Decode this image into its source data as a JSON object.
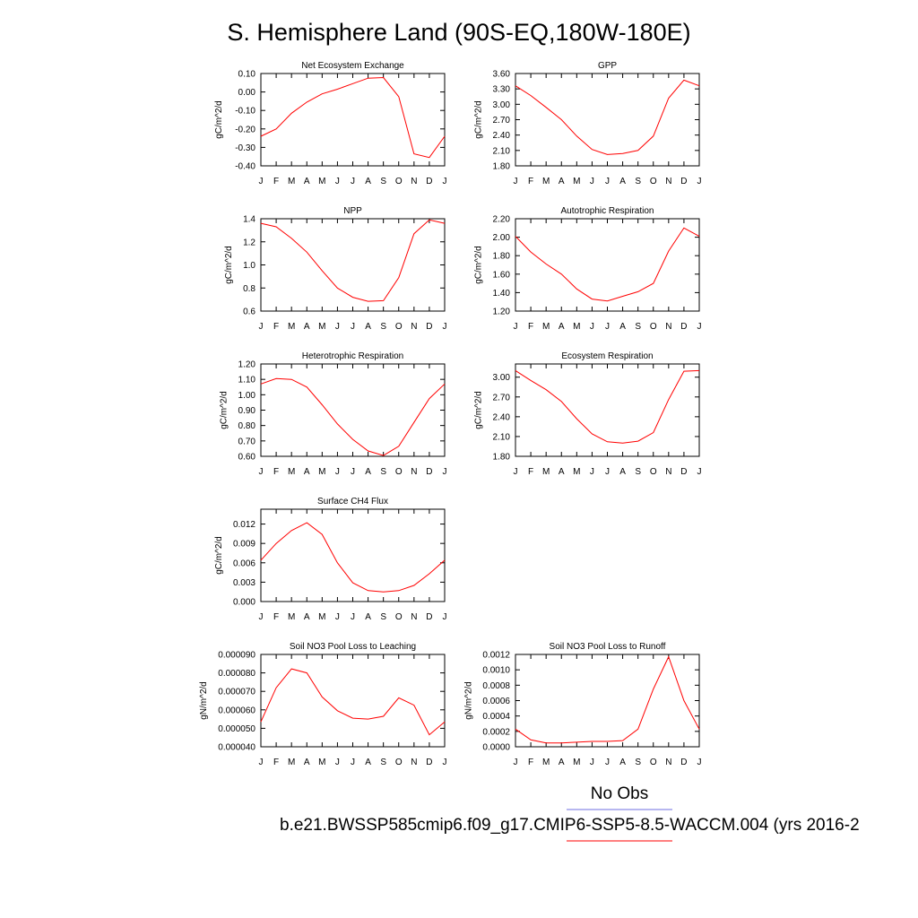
{
  "figure": {
    "title": "S. Hemisphere Land (90S-EQ,180W-180E)",
    "legend": {
      "obs_label": "No Obs",
      "obs_color": "#6f6fe0",
      "model_label": "b.e21.BWSSP585cmip6.f09_g17.CMIP6-SSP5-8.5-WACCM.004 (yrs 2016-2",
      "model_color": "#ff0000"
    }
  },
  "chart_data": [
    {
      "type": "line",
      "title": "Net Ecosystem Exchange",
      "ylabel": "gC/m^2/d",
      "xlabel": "",
      "x": [
        "J",
        "F",
        "M",
        "A",
        "M",
        "J",
        "J",
        "A",
        "S",
        "O",
        "N",
        "D",
        "J"
      ],
      "ylim": [
        -0.4,
        0.1
      ],
      "yticks": [
        0.1,
        0.0,
        -0.1,
        -0.2,
        -0.3,
        -0.4
      ],
      "ytick_labels": [
        "0.10",
        "0.00",
        "-0.10",
        "-0.20",
        "-0.30",
        "-0.40"
      ],
      "series": [
        {
          "name": "model",
          "color": "#ff0000",
          "values": [
            -0.24,
            -0.2,
            -0.115,
            -0.055,
            -0.01,
            0.015,
            0.045,
            0.075,
            0.078,
            -0.025,
            -0.335,
            -0.355,
            -0.24
          ]
        }
      ]
    },
    {
      "type": "line",
      "title": "GPP",
      "ylabel": "gC/m^2/d",
      "xlabel": "",
      "x": [
        "J",
        "F",
        "M",
        "A",
        "M",
        "J",
        "J",
        "A",
        "S",
        "O",
        "N",
        "D",
        "J"
      ],
      "ylim": [
        1.8,
        3.6
      ],
      "yticks": [
        3.6,
        3.3,
        3.0,
        2.7,
        2.4,
        2.1,
        1.8
      ],
      "ytick_labels": [
        "3.60",
        "3.30",
        "3.00",
        "2.70",
        "2.40",
        "2.10",
        "1.80"
      ],
      "series": [
        {
          "name": "model",
          "color": "#ff0000",
          "values": [
            3.36,
            3.17,
            2.94,
            2.7,
            2.38,
            2.12,
            2.02,
            2.04,
            2.1,
            2.38,
            3.12,
            3.47,
            3.36
          ]
        }
      ]
    },
    {
      "type": "line",
      "title": "NPP",
      "ylabel": "gC/m^2/d",
      "xlabel": "",
      "x": [
        "J",
        "F",
        "M",
        "A",
        "M",
        "J",
        "J",
        "A",
        "S",
        "O",
        "N",
        "D",
        "J"
      ],
      "ylim": [
        0.6,
        1.4
      ],
      "yticks": [
        1.4,
        1.2,
        1.0,
        0.8,
        0.6
      ],
      "ytick_labels": [
        "1.4",
        "1.2",
        "1.0",
        "0.8",
        "0.6"
      ],
      "series": [
        {
          "name": "model",
          "color": "#ff0000",
          "values": [
            1.36,
            1.33,
            1.23,
            1.11,
            0.95,
            0.8,
            0.72,
            0.685,
            0.69,
            0.89,
            1.27,
            1.39,
            1.36
          ]
        }
      ]
    },
    {
      "type": "line",
      "title": "Autotrophic Respiration",
      "ylabel": "gC/m^2/d",
      "xlabel": "",
      "x": [
        "J",
        "F",
        "M",
        "A",
        "M",
        "J",
        "J",
        "A",
        "S",
        "O",
        "N",
        "D",
        "J"
      ],
      "ylim": [
        1.2,
        2.2
      ],
      "yticks": [
        2.2,
        2.0,
        1.8,
        1.6,
        1.4,
        1.2
      ],
      "ytick_labels": [
        "2.20",
        "2.00",
        "1.80",
        "1.60",
        "1.40",
        "1.20"
      ],
      "series": [
        {
          "name": "model",
          "color": "#ff0000",
          "values": [
            2.01,
            1.84,
            1.71,
            1.6,
            1.44,
            1.33,
            1.31,
            1.36,
            1.41,
            1.5,
            1.85,
            2.1,
            2.01
          ]
        }
      ]
    },
    {
      "type": "line",
      "title": "Heterotrophic Respiration",
      "ylabel": "gC/m^2/d",
      "xlabel": "",
      "x": [
        "J",
        "F",
        "M",
        "A",
        "M",
        "J",
        "J",
        "A",
        "S",
        "O",
        "N",
        "D",
        "J"
      ],
      "ylim": [
        0.6,
        1.2
      ],
      "yticks": [
        1.2,
        1.1,
        1.0,
        0.9,
        0.8,
        0.7,
        0.6
      ],
      "ytick_labels": [
        "1.20",
        "1.10",
        "1.00",
        "0.90",
        "0.80",
        "0.70",
        "0.60"
      ],
      "series": [
        {
          "name": "model",
          "color": "#ff0000",
          "values": [
            1.07,
            1.105,
            1.1,
            1.05,
            0.935,
            0.81,
            0.71,
            0.635,
            0.605,
            0.665,
            0.82,
            0.975,
            1.07
          ]
        }
      ]
    },
    {
      "type": "line",
      "title": "Ecosystem Respiration",
      "ylabel": "gC/m^2/d",
      "xlabel": "",
      "x": [
        "J",
        "F",
        "M",
        "A",
        "M",
        "J",
        "J",
        "A",
        "S",
        "O",
        "N",
        "D",
        "J"
      ],
      "ylim": [
        1.8,
        3.2
      ],
      "yticks": [
        3.0,
        2.7,
        2.4,
        2.1,
        1.8
      ],
      "ytick_labels": [
        "3.00",
        "2.70",
        "2.40",
        "2.10",
        "1.80"
      ],
      "series": [
        {
          "name": "model",
          "color": "#ff0000",
          "values": [
            3.1,
            2.95,
            2.81,
            2.63,
            2.37,
            2.14,
            2.02,
            2.0,
            2.03,
            2.16,
            2.66,
            3.09,
            3.1
          ]
        }
      ]
    },
    {
      "type": "line",
      "title": "Surface CH4 Flux",
      "ylabel": "gC/m^2/d",
      "xlabel": "",
      "x": [
        "J",
        "F",
        "M",
        "A",
        "M",
        "J",
        "J",
        "A",
        "S",
        "O",
        "N",
        "D",
        "J"
      ],
      "ylim": [
        0.0,
        0.0143
      ],
      "yticks": [
        0.012,
        0.009,
        0.006,
        0.003,
        0.0
      ],
      "ytick_labels": [
        "0.012",
        "0.009",
        "0.006",
        "0.003",
        "0.000"
      ],
      "series": [
        {
          "name": "model",
          "color": "#ff0000",
          "values": [
            0.0064,
            0.009,
            0.011,
            0.0122,
            0.0104,
            0.006,
            0.0029,
            0.0017,
            0.0015,
            0.0017,
            0.0025,
            0.0043,
            0.0064
          ]
        }
      ]
    },
    {
      "type": "line",
      "title": "Soil NO3 Pool Loss to Leaching",
      "ylabel": "gN/m^2/d",
      "xlabel": "",
      "x": [
        "J",
        "F",
        "M",
        "A",
        "M",
        "J",
        "J",
        "A",
        "S",
        "O",
        "N",
        "D",
        "J"
      ],
      "ylim": [
        4e-05,
        9e-05
      ],
      "yticks": [
        9e-05,
        8e-05,
        7e-05,
        6e-05,
        5e-05,
        4e-05
      ],
      "ytick_labels": [
        "0.000090",
        "0.000080",
        "0.000070",
        "0.000060",
        "0.000050",
        "0.000040"
      ],
      "series": [
        {
          "name": "model",
          "color": "#ff0000",
          "values": [
            5.35e-05,
            7.2e-05,
            8.22e-05,
            8e-05,
            6.7e-05,
            5.95e-05,
            5.55e-05,
            5.5e-05,
            5.65e-05,
            6.65e-05,
            6.25e-05,
            4.65e-05,
            5.35e-05
          ]
        }
      ]
    },
    {
      "type": "line",
      "title": "Soil NO3 Pool Loss to Runoff",
      "ylabel": "gN/m^2/d",
      "xlabel": "",
      "x": [
        "J",
        "F",
        "M",
        "A",
        "M",
        "J",
        "J",
        "A",
        "S",
        "O",
        "N",
        "D",
        "J"
      ],
      "ylim": [
        0.0,
        0.0012
      ],
      "yticks": [
        0.0012,
        0.001,
        0.0008,
        0.0006,
        0.0004,
        0.0002,
        0.0
      ],
      "ytick_labels": [
        "0.0012",
        "0.0010",
        "0.0008",
        "0.0006",
        "0.0004",
        "0.0002",
        "0.0000"
      ],
      "series": [
        {
          "name": "model",
          "color": "#ff0000",
          "values": [
            0.00023,
            9e-05,
            5e-05,
            5e-05,
            6e-05,
            7e-05,
            7e-05,
            8e-05,
            0.00023,
            0.00075,
            0.00117,
            0.0006,
            0.00023
          ]
        }
      ]
    }
  ]
}
